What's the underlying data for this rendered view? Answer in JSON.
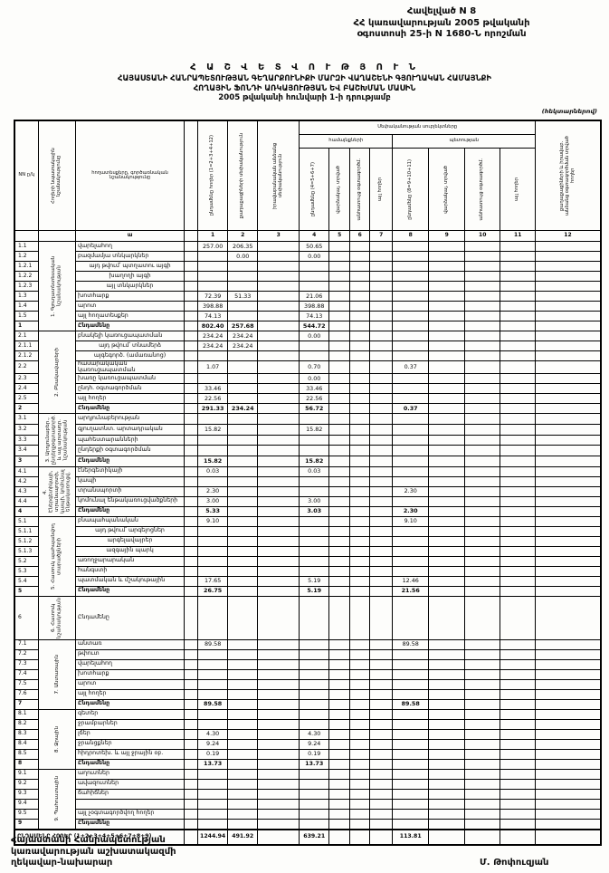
{
  "page": {
    "appendix_lines": [
      "Հավելված N 8",
      "ՀՀ կառավարության 2005 թվականի",
      "օգոստոսի 25-ի N 1680-Ն որոշման"
    ],
    "title1": "Հ Ա Շ Վ Ե Տ Վ Ո Ւ Թ Յ Ո Ւ Ն",
    "title2": "ՀԱՅԱՍՏԱՆԻ ՀԱՆՐԱՊԵՏՈՒԹՅԱՆ ԳԵՂԱՐՔՈՒՆԻՔԻ ՄԱՐԶԻ ՎԱՂԱՇԵՆԻ ԳՅՈՒՂԱԿԱՆ ՀԱՄԱՅՆՔԻ",
    "title3": "ՀՈՂԱՅԻՆ ՖՈՆԴԻ ԱՌԿԱՅՈՒԹՅԱՆ ԵՎ ԲԱՇԽՄԱՆ ՄԱՍԻՆ",
    "title4": "2005 թվականի հունվարի 1-ի դրությամբ",
    "units_note": "(հեկտարներով)",
    "footer_lines": [
      "Հայաստանի Հանրապետության",
      "կառավարության աշխատակազմի",
      "ղեկավար-նախարար"
    ],
    "signer": "Մ. Թոփուզյան"
  },
  "table": {
    "header": {
      "nn": "NN ը/կ",
      "purpose": "Հողերի նպատակային նշանակությունը",
      "landtype": "հողատեսքերը, գործառնական նշանակությունը",
      "group_title": "Սեփականության սուբյեկտները",
      "group_community": "համայնքների",
      "group_state": "պետության",
      "letters": [
        "ա",
        "",
        "1",
        "2",
        "3",
        "4",
        "5",
        "6",
        "7",
        "8",
        "9",
        "10",
        "11",
        "12"
      ],
      "cols": {
        "c1": "ընդամենը հողեր (1=2+3+4+12)",
        "c2": "քաղաքացիների սեփականություն",
        "c3": "իրավաբանական անձանց սեփականություն",
        "c4": "ընդամենը (4=5+6+7)",
        "c5": "վարձակալ. տրված",
        "c6": "անհատույց օգտագործմ.",
        "c7": "այլ հողեր",
        "c8": "ընդամենը (8=9+10+11)",
        "c9": "վարձակալ. տրված",
        "c10": "անհատույց օգտագործմ.",
        "c11": "այլ հողեր",
        "c12": "քաղաքացիների և իրավաբ. անձանց օգտագործման տրված հողեր"
      }
    },
    "sections": [
      {
        "label": "1. Գյուղատնտեսական նշանակության",
        "rows": [
          {
            "code": "1.1",
            "label": "վարելահող",
            "values": {
              "c1": "257.00",
              "c2": "206.35",
              "c4": "50.65"
            }
          },
          {
            "code": "1.2",
            "label": "բազմամյա տնկարկներ",
            "values": {
              "c2": "0.00",
              "c4": "0.00"
            }
          },
          {
            "code": "1.2.1",
            "label": "այդ թվում՝ պտղատու այգի",
            "indent": true,
            "values": {}
          },
          {
            "code": "1.2.2",
            "label": "խաղողի այգի",
            "indent": true,
            "values": {}
          },
          {
            "code": "1.2.3",
            "label": "այլ տնկարկներ",
            "indent": true,
            "values": {}
          },
          {
            "code": "1.3",
            "label": "խոտհարք",
            "values": {
              "c1": "72.39",
              "c2": "51.33",
              "c4": "21.06"
            }
          },
          {
            "code": "1.4",
            "label": "արոտ",
            "values": {
              "c1": "398.88",
              "c4": "398.88"
            }
          },
          {
            "code": "1.5",
            "label": "այլ հողատեսքեր",
            "values": {
              "c1": "74.13",
              "c4": "74.13"
            }
          },
          {
            "code": "1",
            "label": "Ընդամենը",
            "total": true,
            "values": {
              "c1": "802.40",
              "c2": "257.68",
              "c4": "544.72"
            }
          }
        ]
      },
      {
        "label": "2. Բնակավայրերի",
        "rows": [
          {
            "code": "2.1",
            "label": "բնակելի կառուցապատման",
            "values": {
              "c1": "234.24",
              "c2": "234.24",
              "c4": "0.00"
            }
          },
          {
            "code": "2.1.1",
            "label": "այդ թվում՝ տնամերձ",
            "indent": true,
            "values": {
              "c1": "234.24",
              "c2": "234.24"
            }
          },
          {
            "code": "2.1.2",
            "label": "այգեգործ. (ամառանոց)",
            "indent": true,
            "values": {}
          },
          {
            "code": "2.2",
            "label": "հասարակական կառուցապատման",
            "values": {
              "c1": "1.07",
              "c4": "0.70",
              "c8": "0.37"
            }
          },
          {
            "code": "2.3",
            "label": "խառը կառուցապատման",
            "values": {
              "c4": "0.00"
            }
          },
          {
            "code": "2.4",
            "label": "ընդհ. օգտագործման",
            "values": {
              "c1": "33.46",
              "c4": "33.46"
            }
          },
          {
            "code": "2.5",
            "label": "այլ հողեր",
            "values": {
              "c1": "22.56",
              "c4": "22.56"
            }
          },
          {
            "code": "2",
            "label": "Ընդամենը",
            "total": true,
            "values": {
              "c1": "291.33",
              "c2": "234.24",
              "c4": "56.72",
              "c8": "0.37"
            }
          }
        ]
      },
      {
        "label": "3. Արդյունաբեր., ընդերքօգտագործ. և այլ արտադր. նշանակության",
        "rows": [
          {
            "code": "3.1",
            "label": "արդյունաբերության",
            "values": {}
          },
          {
            "code": "3.2",
            "label": "գյուղատնտ. արտադրական",
            "values": {
              "c1": "15.82",
              "c4": "15.82"
            }
          },
          {
            "code": "3.3",
            "label": "պահեստարանների",
            "values": {}
          },
          {
            "code": "3.4",
            "label": "ընդերքի օգտագործման",
            "values": {}
          },
          {
            "code": "3",
            "label": "Ընդամենը",
            "total": true,
            "values": {
              "c1": "15.82",
              "c4": "15.82"
            }
          }
        ]
      },
      {
        "label": "4. Էներգետիկայի, տրանսպորտի, կապի, կոմունալ ենթակառուցվ.",
        "rows": [
          {
            "code": "4.1",
            "label": "էներգետիկայի",
            "values": {
              "c1": "0.03",
              "c4": "0.03"
            }
          },
          {
            "code": "4.2",
            "label": "կապի",
            "values": {}
          },
          {
            "code": "4.3",
            "label": "տրանսպորտի",
            "values": {
              "c1": "2.30",
              "c8": "2.30"
            }
          },
          {
            "code": "4.4",
            "label": "կոմունալ ենթակառուցվածքների",
            "values": {
              "c1": "3.00",
              "c4": "3.00"
            }
          },
          {
            "code": "4",
            "label": "Ընդամենը",
            "total": true,
            "values": {
              "c1": "5.33",
              "c4": "3.03",
              "c8": "2.30"
            }
          }
        ]
      },
      {
        "label": "5. Հատուկ պահպանվող տարածքների",
        "rows": [
          {
            "code": "5.1",
            "label": "բնապահպանական",
            "values": {
              "c1": "9.10",
              "c8": "9.10"
            }
          },
          {
            "code": "5.1.1",
            "label": "այդ թվում՝ արգելոցներ",
            "indent": true,
            "values": {}
          },
          {
            "code": "5.1.2",
            "label": "արգելավայրեր",
            "indent": true,
            "values": {}
          },
          {
            "code": "5.1.3",
            "label": "ազգային պարկ",
            "indent": true,
            "values": {}
          },
          {
            "code": "5.2",
            "label": "առողջարարական",
            "values": {}
          },
          {
            "code": "5.3",
            "label": "հանգստի",
            "values": {}
          },
          {
            "code": "5.4",
            "label": "պատմական և մշակութային",
            "values": {
              "c1": "17.65",
              "c4": "5.19",
              "c8": "12.46"
            }
          },
          {
            "code": "5",
            "label": "Ընդամենը",
            "total": true,
            "values": {
              "c1": "26.75",
              "c4": "5.19",
              "c8": "21.56"
            }
          }
        ]
      },
      {
        "label": "6. Հատուկ նշանակության",
        "rows": [
          {
            "code": "6",
            "label": "Ընդամենը",
            "tall": true,
            "values": {}
          }
        ]
      },
      {
        "label": "7. Անտառային",
        "rows": [
          {
            "code": "7.1",
            "label": "անտառ",
            "values": {
              "c1": "89.58",
              "c8": "89.58"
            }
          },
          {
            "code": "7.2",
            "label": "թփուտ",
            "values": {}
          },
          {
            "code": "7.3",
            "label": "վարելահող",
            "values": {}
          },
          {
            "code": "7.4",
            "label": "խոտհարք",
            "values": {}
          },
          {
            "code": "7.5",
            "label": "արոտ",
            "values": {}
          },
          {
            "code": "7.6",
            "label": "այլ հողեր",
            "values": {}
          },
          {
            "code": "7",
            "label": "Ընդամենը",
            "total": true,
            "values": {
              "c1": "89.58",
              "c8": "89.58"
            }
          }
        ]
      },
      {
        "label": "8. Ջրային",
        "rows": [
          {
            "code": "8.1",
            "label": "գետեր",
            "values": {}
          },
          {
            "code": "8.2",
            "label": "ջրամբարներ",
            "values": {}
          },
          {
            "code": "8.3",
            "label": "լճեր",
            "values": {
              "c1": "4.30",
              "c4": "4.30"
            }
          },
          {
            "code": "8.4",
            "label": "ջրանցքներ",
            "values": {
              "c1": "9.24",
              "c4": "9.24"
            }
          },
          {
            "code": "8.5",
            "label": "հիդրոտեխ. և այլ ջրային օբ.",
            "values": {
              "c1": "0.19",
              "c4": "0.19"
            }
          },
          {
            "code": "8",
            "label": "Ընդամենը",
            "total": true,
            "values": {
              "c1": "13.73",
              "c4": "13.73"
            }
          }
        ]
      },
      {
        "label": "9. Պահուստային",
        "rows": [
          {
            "code": "9.1",
            "label": "աղուտներ",
            "values": {}
          },
          {
            "code": "9.2",
            "label": "ավազուտներ",
            "values": {}
          },
          {
            "code": "9.3",
            "label": "ճահիճներ",
            "values": {}
          },
          {
            "code": "9.4",
            "label": "",
            "values": {}
          },
          {
            "code": "9.5",
            "label": "այլ չօգտագործվող հողեր",
            "values": {}
          },
          {
            "code": "9",
            "label": "Ընդամենը",
            "total": true,
            "values": {}
          }
        ]
      }
    ],
    "grand_total": {
      "label": "ԸՆԴԱՄԵՆԸ ՀՈՂԵՐ (1+2+3+4+5+6+7+8+9)",
      "values": {
        "c1": "1244.94",
        "c2": "491.92",
        "c4": "639.21",
        "c8": "113.81"
      }
    }
  }
}
